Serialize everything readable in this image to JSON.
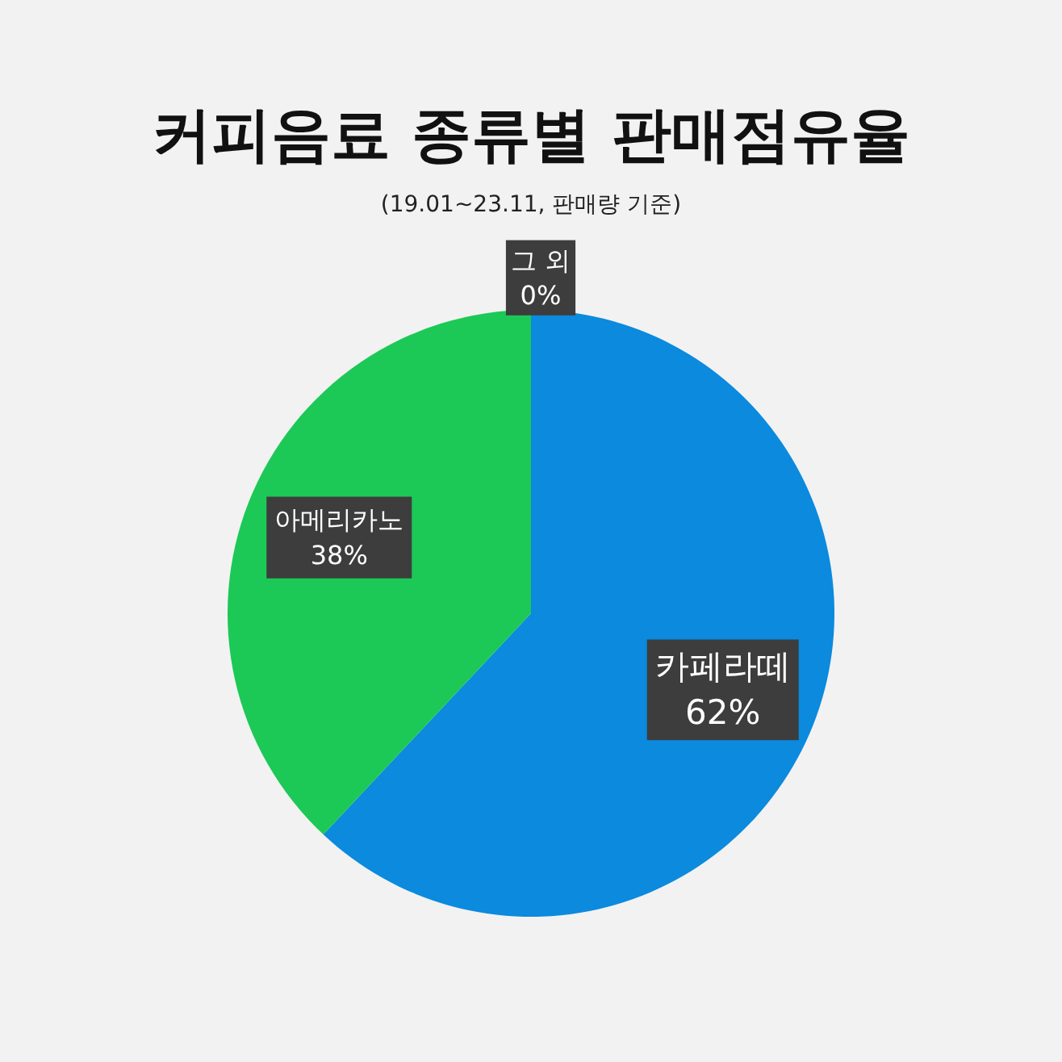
{
  "chart_data": {
    "type": "pie",
    "title": "커피음료 종류별 판매점유율",
    "subtitle": "(19.01~23.11, 판매량 기준)",
    "categories": [
      "카페라떼",
      "아메리카노",
      "그 외"
    ],
    "values": [
      62,
      38,
      0
    ],
    "colors": [
      "#0b8ade",
      "#1cc956",
      "#e07b39"
    ],
    "value_labels": [
      "62%",
      "38%",
      "0%"
    ]
  }
}
